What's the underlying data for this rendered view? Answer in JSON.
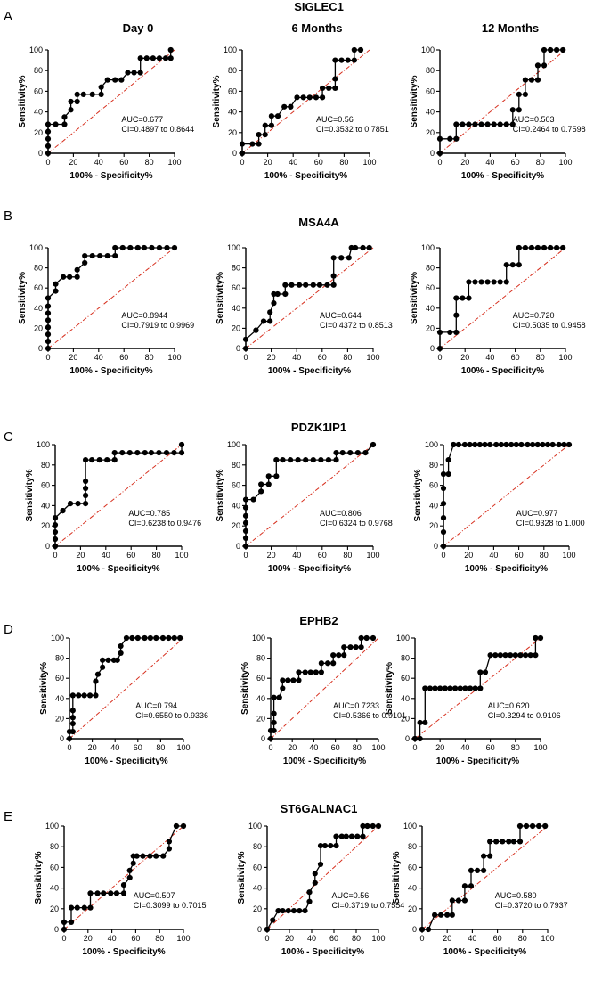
{
  "column_titles": [
    "Day 0",
    "6 Months",
    "12 Months"
  ],
  "chart_data": [
    {
      "letter": "A",
      "gene": "SIGLEC1",
      "type": "line",
      "xlabel": "100% - Specificity%",
      "ylabel": "Sensitivity%",
      "xlim": [
        0,
        100
      ],
      "ylim": [
        0,
        100
      ],
      "ticks": [
        "0",
        "20",
        "40",
        "60",
        "80",
        "100"
      ],
      "panels": [
        {
          "name": "Day 0",
          "auc": "AUC=0.677",
          "ci": "CI=0.4897 to 0.8644",
          "x": [
            0,
            0,
            0,
            0,
            0,
            6,
            13,
            13,
            18,
            18,
            23,
            23,
            28,
            35,
            42,
            42,
            47,
            53,
            58,
            63,
            68,
            73,
            73,
            78,
            83,
            88,
            93,
            97,
            97
          ],
          "y": [
            0,
            7,
            14,
            21,
            28,
            28,
            28,
            35,
            42,
            50,
            50,
            57,
            57,
            57,
            57,
            64,
            71,
            71,
            71,
            78,
            78,
            78,
            92,
            92,
            92,
            92,
            92,
            92,
            100
          ]
        },
        {
          "name": "6 Months",
          "auc": "AUC=0.56",
          "ci": "CI=0.3532 to 0.7851",
          "x": [
            0,
            0,
            8,
            13,
            13,
            18,
            18,
            23,
            23,
            28,
            33,
            38,
            38,
            43,
            48,
            53,
            58,
            63,
            63,
            68,
            73,
            73,
            73,
            78,
            83,
            88,
            88,
            93
          ],
          "y": [
            0,
            9,
            9,
            9,
            18,
            18,
            27,
            27,
            36,
            36,
            45,
            45,
            45,
            54,
            54,
            54,
            54,
            54,
            63,
            63,
            63,
            72,
            90,
            90,
            90,
            90,
            100,
            100
          ]
        },
        {
          "name": "12 Months",
          "auc": "AUC=0.503",
          "ci": "CI=0.2464 to 0.7598",
          "x": [
            0,
            0,
            8,
            13,
            13,
            18,
            23,
            28,
            33,
            38,
            43,
            48,
            53,
            58,
            58,
            63,
            63,
            68,
            68,
            73,
            78,
            78,
            83,
            83,
            88,
            93,
            98
          ],
          "y": [
            0,
            14,
            14,
            14,
            28,
            28,
            28,
            28,
            28,
            28,
            28,
            28,
            28,
            28,
            42,
            42,
            57,
            57,
            71,
            71,
            71,
            85,
            85,
            100,
            100,
            100,
            100
          ]
        }
      ]
    },
    {
      "letter": "B",
      "gene": "MSA4A",
      "type": "line",
      "xlabel": "100% - Specificity%",
      "ylabel": "Sensitivity%",
      "xlim": [
        0,
        100
      ],
      "ylim": [
        0,
        100
      ],
      "ticks": [
        "0",
        "20",
        "40",
        "60",
        "80",
        "100"
      ],
      "panels": [
        {
          "name": "Day 0",
          "auc": "AUC=0.8944",
          "ci": "CI=0.7919 to 0.9969",
          "x": [
            0,
            0,
            0,
            0,
            0,
            0,
            0,
            0,
            6,
            6,
            12,
            17,
            23,
            23,
            29,
            29,
            35,
            41,
            47,
            53,
            53,
            59,
            65,
            71,
            76,
            82,
            88,
            94,
            100
          ],
          "y": [
            0,
            7,
            14,
            21,
            28,
            35,
            42,
            50,
            57,
            64,
            71,
            71,
            71,
            78,
            85,
            92,
            92,
            92,
            92,
            92,
            100,
            100,
            100,
            100,
            100,
            100,
            100,
            100,
            100
          ]
        },
        {
          "name": "6 Months",
          "auc": "AUC=0.644",
          "ci": "CI=0.4372 to 0.8513",
          "x": [
            0,
            0,
            8,
            8,
            14,
            19,
            19,
            22,
            22,
            25,
            31,
            31,
            36,
            42,
            47,
            53,
            58,
            64,
            69,
            69,
            69,
            75,
            75,
            81,
            83,
            86,
            92,
            97
          ],
          "y": [
            0,
            9,
            18,
            18,
            27,
            27,
            36,
            45,
            54,
            54,
            54,
            63,
            63,
            63,
            63,
            63,
            63,
            63,
            63,
            72,
            90,
            90,
            90,
            90,
            100,
            100,
            100,
            100
          ]
        },
        {
          "name": "12 Months",
          "auc": "AUC=0.720",
          "ci": "CI=0.5035 to 0.9458",
          "x": [
            0,
            0,
            8,
            13,
            13,
            13,
            18,
            23,
            23,
            28,
            33,
            38,
            43,
            48,
            53,
            53,
            58,
            63,
            63,
            68,
            73,
            78,
            83,
            88,
            93,
            98
          ],
          "y": [
            0,
            16,
            16,
            16,
            33,
            50,
            50,
            50,
            66,
            66,
            66,
            66,
            66,
            66,
            66,
            83,
            83,
            83,
            100,
            100,
            100,
            100,
            100,
            100,
            100,
            100
          ]
        }
      ]
    },
    {
      "letter": "C",
      "gene": "PDZK1IP1",
      "type": "line",
      "xlabel": "100% - Specificity%",
      "ylabel": "Sensitivity%",
      "xlim": [
        0,
        100
      ],
      "ylim": [
        0,
        100
      ],
      "ticks": [
        "0",
        "20",
        "40",
        "60",
        "80",
        "100"
      ],
      "panels": [
        {
          "name": "Day 0",
          "auc": "AUC=0.785",
          "ci": "CI=0.6238 to 0.9476",
          "x": [
            0,
            0,
            0,
            0,
            0,
            6,
            6,
            12,
            18,
            24,
            24,
            24,
            24,
            24,
            29,
            35,
            41,
            47,
            47,
            53,
            59,
            65,
            71,
            76,
            82,
            88,
            94,
            100,
            100
          ],
          "y": [
            0,
            7,
            14,
            21,
            28,
            35,
            35,
            42,
            42,
            42,
            50,
            57,
            64,
            85,
            85,
            85,
            85,
            85,
            92,
            92,
            92,
            92,
            92,
            92,
            92,
            92,
            92,
            92,
            100
          ]
        },
        {
          "name": "6 Months",
          "auc": "AUC=0.806",
          "ci": "CI=0.6324 to 0.9768",
          "x": [
            0,
            0,
            0,
            0,
            0,
            0,
            0,
            6,
            12,
            12,
            18,
            18,
            24,
            24,
            29,
            35,
            41,
            47,
            53,
            59,
            65,
            71,
            71,
            76,
            82,
            88,
            94,
            100
          ],
          "y": [
            0,
            8,
            15,
            23,
            30,
            38,
            46,
            46,
            54,
            61,
            61,
            69,
            69,
            85,
            85,
            85,
            85,
            85,
            85,
            85,
            85,
            85,
            92,
            92,
            92,
            92,
            92,
            100
          ]
        },
        {
          "name": "12 Months",
          "auc": "AUC=0.977",
          "ci": "CI=0.9328 to 1.000",
          "x": [
            0,
            0,
            0,
            0,
            0,
            0,
            4,
            4,
            8,
            12,
            17,
            21,
            25,
            29,
            33,
            37,
            42,
            46,
            50,
            54,
            58,
            62,
            67,
            71,
            75,
            79,
            83,
            87,
            92,
            96,
            100
          ],
          "y": [
            0,
            14,
            28,
            42,
            57,
            71,
            71,
            85,
            100,
            100,
            100,
            100,
            100,
            100,
            100,
            100,
            100,
            100,
            100,
            100,
            100,
            100,
            100,
            100,
            100,
            100,
            100,
            100,
            100,
            100,
            100
          ]
        }
      ]
    },
    {
      "letter": "D",
      "gene": "EPHB2",
      "type": "line",
      "xlabel": "100% - Specificity%",
      "ylabel": "Sensitivity%",
      "xlim": [
        0,
        100
      ],
      "ylim": [
        0,
        100
      ],
      "ticks": [
        "0",
        "20",
        "40",
        "60",
        "80",
        "100"
      ],
      "panels": [
        {
          "name": "Day 0",
          "auc": "AUC=0.794",
          "ci": "CI=0.6550 to 0.9336",
          "x": [
            0,
            0,
            3,
            3,
            3,
            3,
            3,
            8,
            13,
            18,
            23,
            23,
            25,
            29,
            29,
            34,
            39,
            42,
            45,
            45,
            50,
            55,
            60,
            66,
            71,
            76,
            82,
            87,
            92,
            97
          ],
          "y": [
            0,
            7,
            7,
            15,
            21,
            28,
            43,
            43,
            43,
            43,
            43,
            57,
            64,
            71,
            78,
            78,
            78,
            78,
            85,
            92,
            100,
            100,
            100,
            100,
            100,
            100,
            100,
            100,
            100,
            100
          ]
        },
        {
          "name": "6 Months",
          "auc": "AUC=0.7233",
          "ci": "CI=0.5366 to 0.9101",
          "x": [
            0,
            0,
            3,
            3,
            3,
            3,
            8,
            8,
            11,
            11,
            16,
            21,
            26,
            26,
            32,
            37,
            42,
            47,
            47,
            53,
            58,
            58,
            63,
            68,
            68,
            74,
            79,
            84,
            84,
            89,
            95
          ],
          "y": [
            0,
            8,
            8,
            16,
            25,
            41,
            41,
            41,
            50,
            58,
            58,
            58,
            58,
            66,
            66,
            66,
            66,
            66,
            75,
            75,
            75,
            83,
            83,
            83,
            91,
            91,
            91,
            91,
            100,
            100,
            100
          ]
        },
        {
          "name": "12 Months",
          "auc": "AUC=0.620",
          "ci": "CI=0.3294 to 0.9106",
          "x": [
            0,
            0,
            4,
            4,
            8,
            8,
            12,
            16,
            20,
            24,
            28,
            32,
            36,
            40,
            44,
            48,
            52,
            52,
            56,
            60,
            64,
            68,
            72,
            76,
            80,
            84,
            88,
            92,
            96,
            96,
            100
          ],
          "y": [
            0,
            0,
            0,
            16,
            16,
            50,
            50,
            50,
            50,
            50,
            50,
            50,
            50,
            50,
            50,
            50,
            50,
            66,
            66,
            83,
            83,
            83,
            83,
            83,
            83,
            83,
            83,
            83,
            83,
            100,
            100
          ]
        }
      ]
    },
    {
      "letter": "E",
      "gene": "ST6GALNAC1",
      "type": "line",
      "xlabel": "100% - Specificity%",
      "ylabel": "Sensitivity%",
      "xlim": [
        0,
        100
      ],
      "ylim": [
        0,
        100
      ],
      "ticks": [
        "0",
        "20",
        "40",
        "60",
        "80",
        "100"
      ],
      "panels": [
        {
          "name": "Day 0",
          "auc": "AUC=0.507",
          "ci": "CI=0.3099 to 0.7015",
          "x": [
            0,
            0,
            6,
            6,
            11,
            17,
            22,
            22,
            28,
            33,
            39,
            44,
            50,
            50,
            55,
            55,
            58,
            58,
            61,
            66,
            72,
            77,
            83,
            88,
            88,
            94,
            100
          ],
          "y": [
            0,
            7,
            7,
            21,
            21,
            21,
            21,
            35,
            35,
            35,
            35,
            35,
            35,
            43,
            50,
            57,
            64,
            71,
            71,
            71,
            71,
            71,
            71,
            78,
            85,
            100,
            100
          ]
        },
        {
          "name": "6 Months",
          "auc": "AUC=0.56",
          "ci": "CI=0.3719 to 0.7554",
          "x": [
            0,
            0,
            5,
            10,
            14,
            19,
            24,
            29,
            34,
            38,
            38,
            43,
            43,
            48,
            48,
            52,
            57,
            62,
            62,
            67,
            71,
            76,
            81,
            86,
            86,
            90,
            95,
            100
          ],
          "y": [
            0,
            0,
            9,
            18,
            18,
            18,
            18,
            18,
            18,
            27,
            36,
            45,
            54,
            63,
            81,
            81,
            81,
            81,
            90,
            90,
            90,
            90,
            90,
            90,
            100,
            100,
            100,
            100
          ]
        },
        {
          "name": "12 Months",
          "auc": "AUC=0.580",
          "ci": "CI=0.3720 to 0.7937",
          "x": [
            0,
            0,
            5,
            10,
            15,
            20,
            24,
            24,
            29,
            34,
            34,
            39,
            39,
            44,
            49,
            49,
            54,
            54,
            59,
            64,
            69,
            73,
            78,
            78,
            83,
            88,
            93,
            98
          ],
          "y": [
            0,
            0,
            0,
            14,
            14,
            14,
            14,
            28,
            28,
            28,
            42,
            42,
            57,
            57,
            57,
            71,
            71,
            85,
            85,
            85,
            85,
            85,
            85,
            100,
            100,
            100,
            100,
            100
          ]
        }
      ]
    }
  ]
}
